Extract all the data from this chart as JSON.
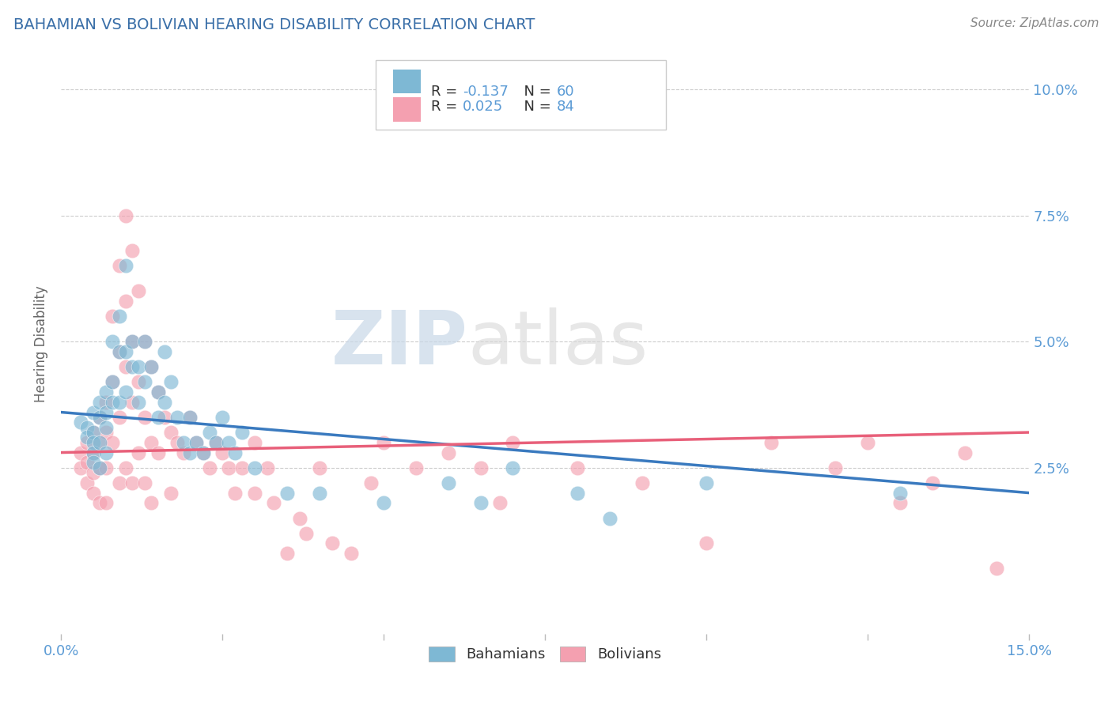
{
  "title": "BAHAMIAN VS BOLIVIAN HEARING DISABILITY CORRELATION CHART",
  "source": "Source: ZipAtlas.com",
  "ylabel": "Hearing Disability",
  "xlim": [
    0.0,
    0.15
  ],
  "ylim": [
    -0.008,
    0.107
  ],
  "xtick_vals": [
    0.0,
    0.025,
    0.05,
    0.075,
    0.1,
    0.125,
    0.15
  ],
  "xtick_labels": [
    "0.0%",
    "",
    "",
    "",
    "",
    "",
    "15.0%"
  ],
  "ytick_vals": [
    0.025,
    0.05,
    0.075,
    0.1
  ],
  "ytick_labels": [
    "2.5%",
    "5.0%",
    "7.5%",
    "10.0%"
  ],
  "blue_color": "#7eb8d4",
  "pink_color": "#f4a0b0",
  "blue_line_color": "#3a7abf",
  "pink_line_color": "#e8607a",
  "blue_R": -0.137,
  "blue_N": 60,
  "pink_R": 0.025,
  "pink_N": 84,
  "legend_label_blue": "Bahamians",
  "legend_label_pink": "Bolivians",
  "watermark_zip": "ZIP",
  "watermark_atlas": "atlas",
  "background_color": "#ffffff",
  "grid_color": "#cccccc",
  "title_color": "#3a6fa8",
  "source_color": "#888888",
  "tick_color": "#5b9bd5",
  "ylabel_color": "#666666",
  "legend_text_color_label": "#333333",
  "legend_value_color": "#5b9bd5",
  "blue_scatter": [
    [
      0.003,
      0.034
    ],
    [
      0.004,
      0.033
    ],
    [
      0.004,
      0.031
    ],
    [
      0.005,
      0.036
    ],
    [
      0.005,
      0.032
    ],
    [
      0.005,
      0.03
    ],
    [
      0.005,
      0.028
    ],
    [
      0.005,
      0.026
    ],
    [
      0.006,
      0.038
    ],
    [
      0.006,
      0.035
    ],
    [
      0.006,
      0.03
    ],
    [
      0.006,
      0.025
    ],
    [
      0.007,
      0.04
    ],
    [
      0.007,
      0.036
    ],
    [
      0.007,
      0.033
    ],
    [
      0.007,
      0.028
    ],
    [
      0.008,
      0.05
    ],
    [
      0.008,
      0.042
    ],
    [
      0.008,
      0.038
    ],
    [
      0.009,
      0.055
    ],
    [
      0.009,
      0.048
    ],
    [
      0.009,
      0.038
    ],
    [
      0.01,
      0.065
    ],
    [
      0.01,
      0.048
    ],
    [
      0.01,
      0.04
    ],
    [
      0.011,
      0.05
    ],
    [
      0.011,
      0.045
    ],
    [
      0.012,
      0.045
    ],
    [
      0.012,
      0.038
    ],
    [
      0.013,
      0.05
    ],
    [
      0.013,
      0.042
    ],
    [
      0.014,
      0.045
    ],
    [
      0.015,
      0.04
    ],
    [
      0.015,
      0.035
    ],
    [
      0.016,
      0.048
    ],
    [
      0.016,
      0.038
    ],
    [
      0.017,
      0.042
    ],
    [
      0.018,
      0.035
    ],
    [
      0.019,
      0.03
    ],
    [
      0.02,
      0.035
    ],
    [
      0.02,
      0.028
    ],
    [
      0.021,
      0.03
    ],
    [
      0.022,
      0.028
    ],
    [
      0.023,
      0.032
    ],
    [
      0.024,
      0.03
    ],
    [
      0.025,
      0.035
    ],
    [
      0.026,
      0.03
    ],
    [
      0.027,
      0.028
    ],
    [
      0.028,
      0.032
    ],
    [
      0.03,
      0.025
    ],
    [
      0.035,
      0.02
    ],
    [
      0.04,
      0.02
    ],
    [
      0.05,
      0.018
    ],
    [
      0.06,
      0.022
    ],
    [
      0.065,
      0.018
    ],
    [
      0.07,
      0.025
    ],
    [
      0.08,
      0.02
    ],
    [
      0.085,
      0.015
    ],
    [
      0.1,
      0.022
    ],
    [
      0.13,
      0.02
    ]
  ],
  "pink_scatter": [
    [
      0.003,
      0.028
    ],
    [
      0.003,
      0.025
    ],
    [
      0.004,
      0.03
    ],
    [
      0.004,
      0.026
    ],
    [
      0.004,
      0.022
    ],
    [
      0.005,
      0.032
    ],
    [
      0.005,
      0.028
    ],
    [
      0.005,
      0.024
    ],
    [
      0.005,
      0.02
    ],
    [
      0.006,
      0.035
    ],
    [
      0.006,
      0.03
    ],
    [
      0.006,
      0.025
    ],
    [
      0.006,
      0.018
    ],
    [
      0.007,
      0.038
    ],
    [
      0.007,
      0.032
    ],
    [
      0.007,
      0.025
    ],
    [
      0.007,
      0.018
    ],
    [
      0.008,
      0.055
    ],
    [
      0.008,
      0.042
    ],
    [
      0.008,
      0.03
    ],
    [
      0.009,
      0.065
    ],
    [
      0.009,
      0.048
    ],
    [
      0.009,
      0.035
    ],
    [
      0.009,
      0.022
    ],
    [
      0.01,
      0.075
    ],
    [
      0.01,
      0.058
    ],
    [
      0.01,
      0.045
    ],
    [
      0.01,
      0.025
    ],
    [
      0.011,
      0.068
    ],
    [
      0.011,
      0.05
    ],
    [
      0.011,
      0.038
    ],
    [
      0.011,
      0.022
    ],
    [
      0.012,
      0.06
    ],
    [
      0.012,
      0.042
    ],
    [
      0.012,
      0.028
    ],
    [
      0.013,
      0.05
    ],
    [
      0.013,
      0.035
    ],
    [
      0.013,
      0.022
    ],
    [
      0.014,
      0.045
    ],
    [
      0.014,
      0.03
    ],
    [
      0.014,
      0.018
    ],
    [
      0.015,
      0.04
    ],
    [
      0.015,
      0.028
    ],
    [
      0.016,
      0.035
    ],
    [
      0.017,
      0.032
    ],
    [
      0.017,
      0.02
    ],
    [
      0.018,
      0.03
    ],
    [
      0.019,
      0.028
    ],
    [
      0.02,
      0.035
    ],
    [
      0.021,
      0.03
    ],
    [
      0.022,
      0.028
    ],
    [
      0.023,
      0.025
    ],
    [
      0.024,
      0.03
    ],
    [
      0.025,
      0.028
    ],
    [
      0.026,
      0.025
    ],
    [
      0.027,
      0.02
    ],
    [
      0.028,
      0.025
    ],
    [
      0.03,
      0.03
    ],
    [
      0.03,
      0.02
    ],
    [
      0.032,
      0.025
    ],
    [
      0.033,
      0.018
    ],
    [
      0.035,
      0.008
    ],
    [
      0.037,
      0.015
    ],
    [
      0.038,
      0.012
    ],
    [
      0.04,
      0.025
    ],
    [
      0.042,
      0.01
    ],
    [
      0.045,
      0.008
    ],
    [
      0.048,
      0.022
    ],
    [
      0.05,
      0.03
    ],
    [
      0.055,
      0.025
    ],
    [
      0.06,
      0.028
    ],
    [
      0.065,
      0.025
    ],
    [
      0.068,
      0.018
    ],
    [
      0.07,
      0.03
    ],
    [
      0.08,
      0.025
    ],
    [
      0.09,
      0.022
    ],
    [
      0.1,
      0.01
    ],
    [
      0.11,
      0.03
    ],
    [
      0.12,
      0.025
    ],
    [
      0.125,
      0.03
    ],
    [
      0.13,
      0.018
    ],
    [
      0.135,
      0.022
    ],
    [
      0.14,
      0.028
    ],
    [
      0.145,
      0.005
    ]
  ],
  "blue_trend_x": [
    0.0,
    0.15
  ],
  "blue_trend_y": [
    0.036,
    0.02
  ],
  "pink_trend_x": [
    0.0,
    0.15
  ],
  "pink_trend_y": [
    0.028,
    0.032
  ]
}
